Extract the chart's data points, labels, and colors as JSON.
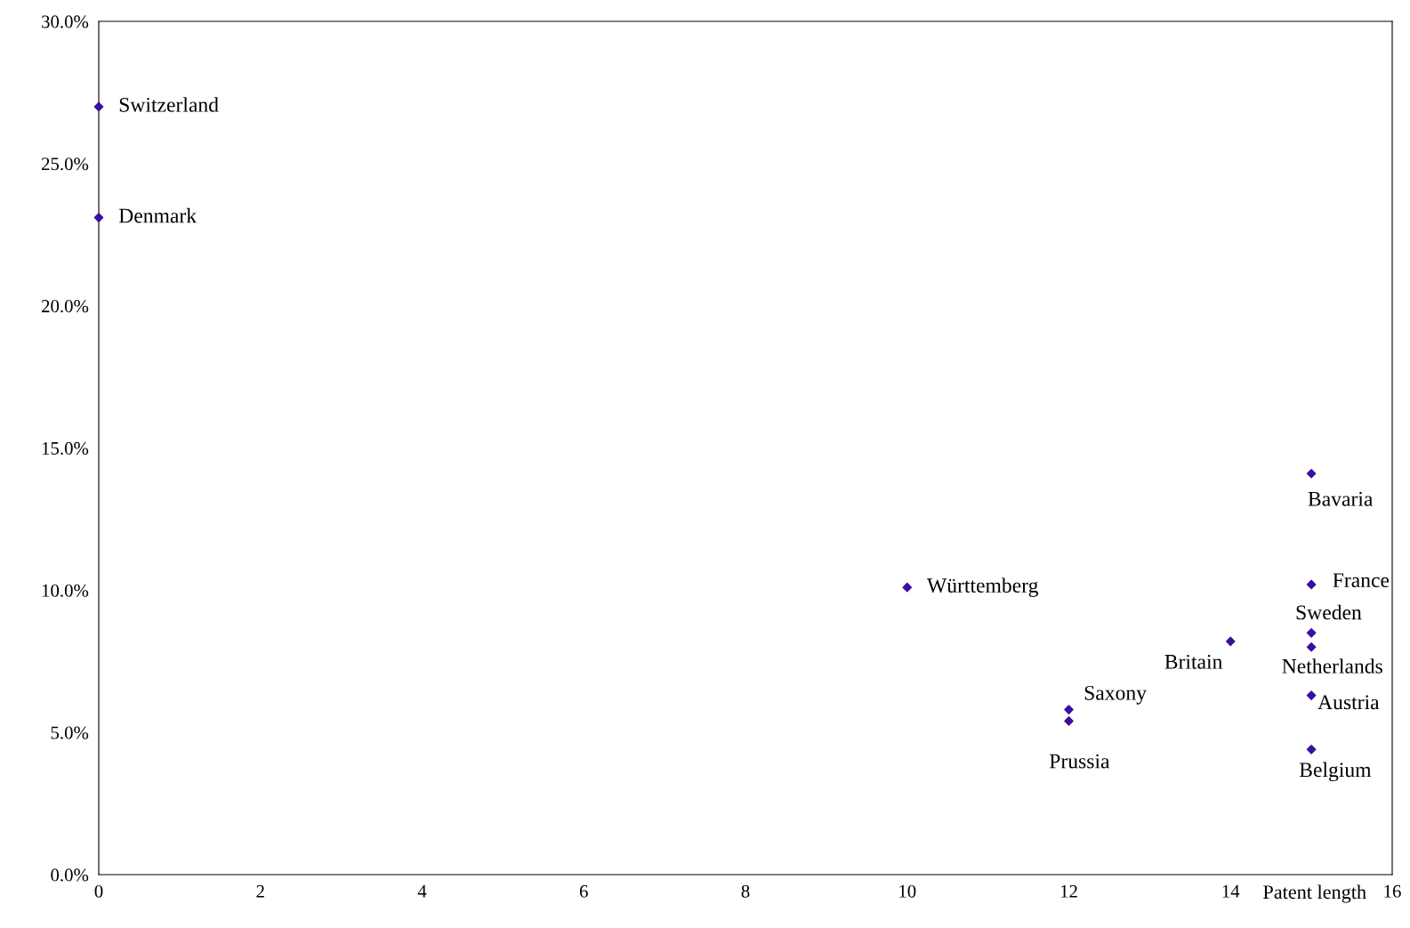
{
  "chart_data": {
    "type": "scatter",
    "xlabel": "Patent length",
    "x": [
      0,
      0,
      10,
      12,
      12,
      14,
      15,
      15,
      15,
      15,
      15,
      15
    ],
    "values": [
      27.0,
      23.1,
      10.1,
      5.8,
      5.4,
      8.2,
      14.1,
      10.2,
      8.5,
      8.0,
      6.3,
      4.4
    ],
    "color": "#3a0fa0",
    "marker": "diamond",
    "xlim": [
      0,
      16
    ],
    "xticks": [
      0,
      2,
      4,
      6,
      8,
      10,
      12,
      14,
      16
    ],
    "ylim": [
      0,
      30
    ],
    "yticks": [
      {
        "value": 0,
        "label": "0.0%"
      },
      {
        "value": 5,
        "label": "5.0%"
      },
      {
        "value": 10,
        "label": "10.0%"
      },
      {
        "value": 15,
        "label": "15.0%"
      },
      {
        "value": 20,
        "label": "20.0%"
      },
      {
        "value": 25,
        "label": "25.0%"
      },
      {
        "value": 30,
        "label": "30.0%"
      }
    ],
    "grid": false,
    "legend": false,
    "annotations": [
      {
        "text": "Switzerland",
        "x": 0,
        "y": 27.0
      },
      {
        "text": "Denmark",
        "x": 0,
        "y": 23.1
      },
      {
        "text": "Württemberg",
        "x": 10,
        "y": 10.1
      },
      {
        "text": "Saxony",
        "x": 12,
        "y": 5.8
      },
      {
        "text": "Prussia",
        "x": 12,
        "y": 5.4
      },
      {
        "text": "Britain",
        "x": 14,
        "y": 8.2
      },
      {
        "text": "Bavaria",
        "x": 15,
        "y": 14.1
      },
      {
        "text": "France",
        "x": 15,
        "y": 10.2
      },
      {
        "text": "Sweden",
        "x": 15,
        "y": 8.5
      },
      {
        "text": "Netherlands",
        "x": 15,
        "y": 8.0
      },
      {
        "text": "Austria",
        "x": 15,
        "y": 6.3
      },
      {
        "text": "Belgium",
        "x": 15,
        "y": 4.4
      }
    ]
  }
}
